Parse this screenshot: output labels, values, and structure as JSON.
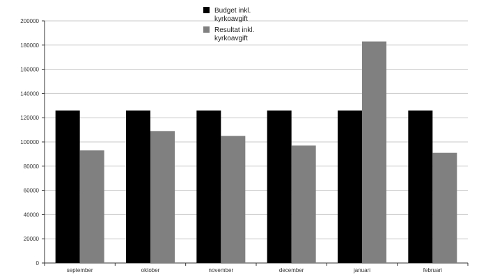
{
  "chart_data": {
    "type": "bar",
    "categories": [
      "september",
      "oktober",
      "november",
      "december",
      "januari",
      "februari"
    ],
    "series": [
      {
        "name": "Budget inkl. kyrkoavgift",
        "legend_lines": [
          "Budget inkl.",
          "kyrkoavgift"
        ],
        "color": "#000000",
        "values": [
          126000,
          126000,
          126000,
          126000,
          126000,
          126000
        ]
      },
      {
        "name": "Resultat inkl. kyrkoavgift",
        "legend_lines": [
          "Resultat inkl.",
          "kyrkoavgift"
        ],
        "color": "#808080",
        "values": [
          93000,
          109000,
          105000,
          97000,
          183000,
          91000
        ]
      }
    ],
    "ylim": [
      0,
      200000
    ],
    "yticks": [
      0,
      20000,
      40000,
      60000,
      80000,
      100000,
      120000,
      140000,
      160000,
      180000,
      200000
    ],
    "grid": true,
    "legend_position": "top-center",
    "title": "",
    "xlabel": "",
    "ylabel": ""
  }
}
